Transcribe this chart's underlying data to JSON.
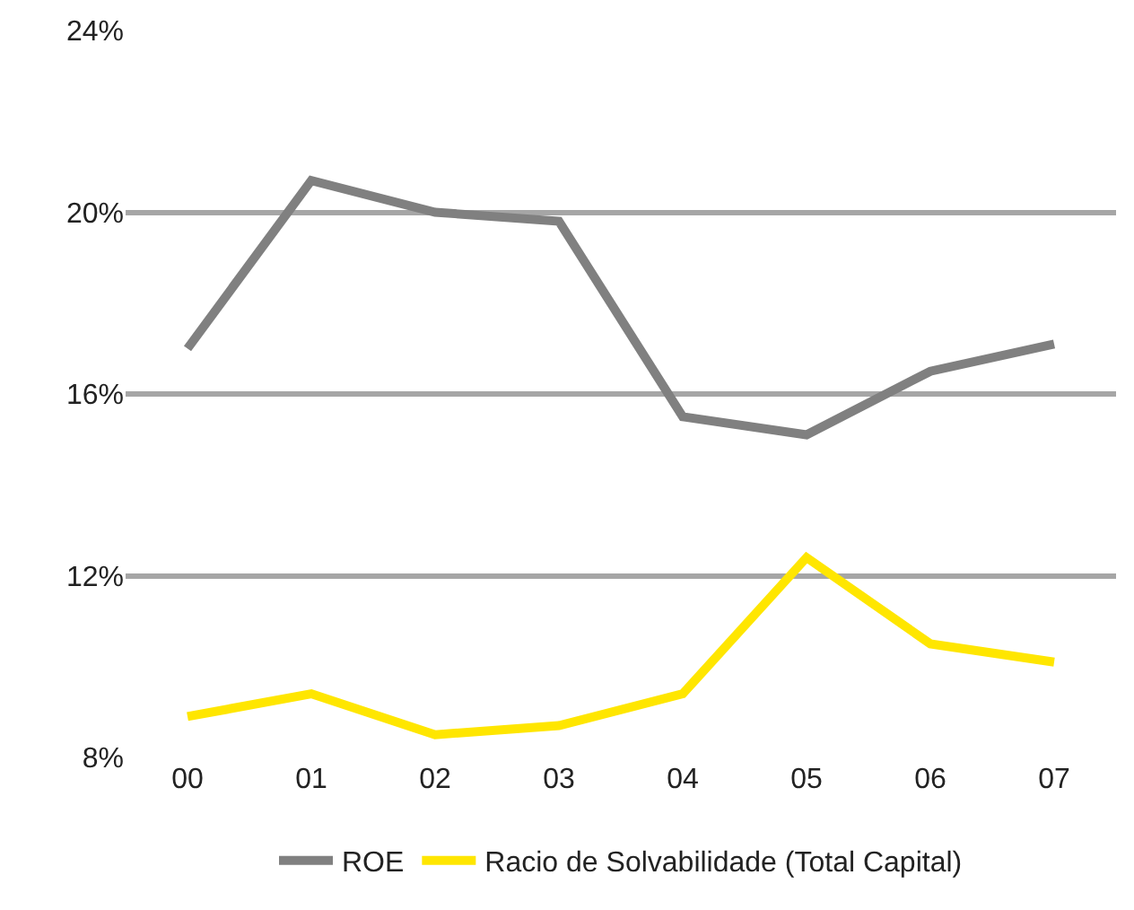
{
  "chart_data": {
    "type": "line",
    "categories": [
      "00",
      "01",
      "02",
      "03",
      "04",
      "05",
      "06",
      "07"
    ],
    "series": [
      {
        "name": "ROE",
        "color": "#808080",
        "values": [
          17.0,
          20.7,
          20.0,
          19.8,
          15.5,
          15.1,
          16.5,
          17.1
        ]
      },
      {
        "name": "Racio de Solvabilidade (Total Capital)",
        "color": "#ffe600",
        "values": [
          8.9,
          9.4,
          8.5,
          8.7,
          9.4,
          12.4,
          10.5,
          10.1
        ]
      }
    ],
    "ylim": [
      8,
      24
    ],
    "yticks": [
      {
        "value": 8,
        "label": "8%"
      },
      {
        "value": 12,
        "label": "12%"
      },
      {
        "value": 16,
        "label": "16%"
      },
      {
        "value": 20,
        "label": "20%"
      },
      {
        "value": 24,
        "label": "24%"
      }
    ],
    "grid": "y",
    "legend": "bottom",
    "marker": "none",
    "line_style": "solid"
  }
}
